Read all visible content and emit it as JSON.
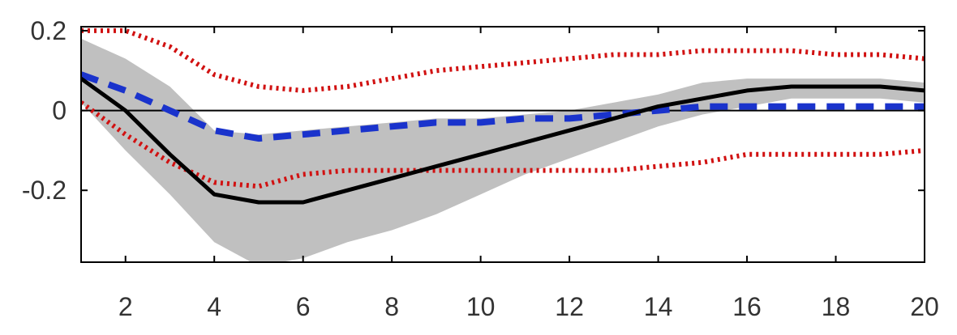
{
  "chart_data": {
    "type": "line",
    "title": "",
    "xlabel": "",
    "ylabel": "",
    "xlim": [
      1,
      20
    ],
    "ylim": [
      -0.38,
      0.21
    ],
    "x_ticks": [
      2,
      4,
      6,
      8,
      10,
      12,
      14,
      16,
      18,
      20
    ],
    "x_tick_labels": [
      "2",
      "4",
      "6",
      "8",
      "10",
      "12",
      "14",
      "16",
      "18",
      "20"
    ],
    "y_ticks": [
      0.2,
      0,
      -0.2
    ],
    "y_tick_labels": [
      "0.2",
      "0",
      "-0.2"
    ],
    "grid": false,
    "legend": "none",
    "zero_line": true,
    "band": {
      "color": "#c0c0c0",
      "x": [
        1,
        2,
        3,
        4,
        5,
        6,
        7,
        8,
        9,
        10,
        11,
        12,
        13,
        14,
        15,
        16,
        17,
        18,
        19,
        20
      ],
      "upper": [
        0.18,
        0.13,
        0.06,
        -0.05,
        -0.06,
        -0.05,
        -0.04,
        -0.03,
        -0.02,
        -0.02,
        -0.01,
        0.0,
        0.02,
        0.04,
        0.07,
        0.08,
        0.08,
        0.08,
        0.08,
        0.07
      ],
      "lower": [
        0.02,
        -0.1,
        -0.21,
        -0.33,
        -0.39,
        -0.37,
        -0.33,
        -0.3,
        -0.26,
        -0.21,
        -0.16,
        -0.12,
        -0.08,
        -0.04,
        -0.01,
        0.01,
        0.03,
        0.03,
        0.03,
        0.02
      ]
    },
    "series": [
      {
        "style": "solid",
        "color": "#000000",
        "x": [
          1,
          2,
          3,
          4,
          5,
          6,
          7,
          8,
          9,
          10,
          11,
          12,
          13,
          14,
          15,
          16,
          17,
          18,
          19,
          20
        ],
        "values": [
          0.08,
          0.0,
          -0.11,
          -0.21,
          -0.23,
          -0.23,
          -0.2,
          -0.17,
          -0.14,
          -0.11,
          -0.08,
          -0.05,
          -0.02,
          0.01,
          0.03,
          0.05,
          0.06,
          0.06,
          0.06,
          0.05
        ]
      },
      {
        "style": "dashed",
        "color": "#1a33cc",
        "x": [
          1,
          2,
          3,
          4,
          5,
          6,
          7,
          8,
          9,
          10,
          11,
          12,
          13,
          14,
          15,
          16,
          17,
          18,
          19,
          20
        ],
        "values": [
          0.09,
          0.05,
          0.0,
          -0.05,
          -0.07,
          -0.06,
          -0.05,
          -0.04,
          -0.03,
          -0.03,
          -0.02,
          -0.02,
          -0.01,
          0.0,
          0.01,
          0.01,
          0.01,
          0.01,
          0.01,
          0.01
        ]
      },
      {
        "style": "dotted",
        "color": "#d11111",
        "x": [
          1,
          2,
          3,
          4,
          5,
          6,
          7,
          8,
          9,
          10,
          11,
          12,
          13,
          14,
          15,
          16,
          17,
          18,
          19,
          20
        ],
        "values": [
          0.2,
          0.2,
          0.16,
          0.09,
          0.06,
          0.05,
          0.06,
          0.08,
          0.1,
          0.11,
          0.12,
          0.13,
          0.14,
          0.14,
          0.15,
          0.15,
          0.15,
          0.14,
          0.14,
          0.13
        ]
      },
      {
        "style": "dotted",
        "color": "#d11111",
        "x": [
          1,
          2,
          3,
          4,
          5,
          6,
          7,
          8,
          9,
          10,
          11,
          12,
          13,
          14,
          15,
          16,
          17,
          18,
          19,
          20
        ],
        "values": [
          0.02,
          -0.06,
          -0.13,
          -0.18,
          -0.19,
          -0.16,
          -0.15,
          -0.15,
          -0.15,
          -0.15,
          -0.15,
          -0.15,
          -0.15,
          -0.14,
          -0.13,
          -0.11,
          -0.11,
          -0.11,
          -0.11,
          -0.1
        ]
      }
    ]
  }
}
